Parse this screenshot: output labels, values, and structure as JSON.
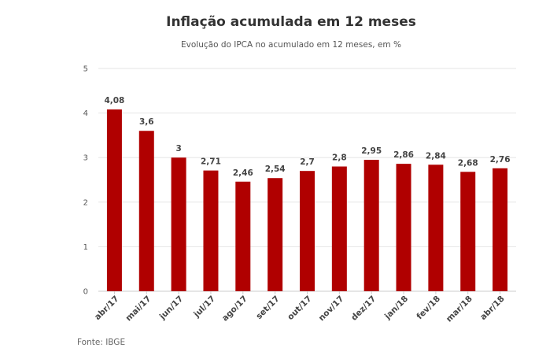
{
  "chart_data": {
    "type": "bar",
    "title": "Inflação acumulada em 12 meses",
    "subtitle": "Evolução do IPCA no acumulado em 12 meses, em %",
    "source": "Fonte: IBGE",
    "categories": [
      "abr/17",
      "mai/17",
      "jun/17",
      "jul/17",
      "ago/17",
      "set/17",
      "out/17",
      "nov/17",
      "dez/17",
      "jan/18",
      "fev/18",
      "mar/18",
      "abr/18"
    ],
    "values": [
      4.08,
      3.6,
      3,
      2.71,
      2.46,
      2.54,
      2.7,
      2.8,
      2.95,
      2.86,
      2.84,
      2.68,
      2.76
    ],
    "value_labels": [
      "4,08",
      "3,6",
      "3",
      "2,71",
      "2,46",
      "2,54",
      "2,7",
      "2,8",
      "2,95",
      "2,86",
      "2,84",
      "2,68",
      "2,76"
    ],
    "yticks": [
      0,
      1,
      2,
      3,
      4,
      5
    ],
    "ylim": [
      0,
      5
    ],
    "xlabel": "",
    "ylabel": "",
    "grid": true,
    "bar_color": "#b00000"
  }
}
